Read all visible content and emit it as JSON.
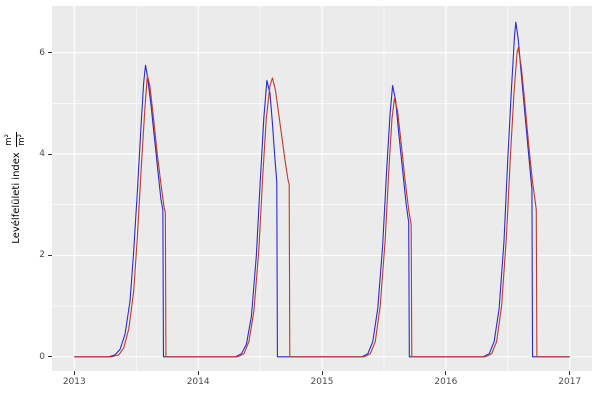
{
  "figure": {
    "background": "#ffffff",
    "panel_background": "#ebebeb",
    "gridline_color": "#ffffff",
    "tick_label_color": "#4d4d4d",
    "axis_label_color": "#000000"
  },
  "y_axis": {
    "label_text": "Levélfelületi index",
    "unit_numerator": "m²",
    "unit_denominator": "m²",
    "ticks": [
      "0",
      "2",
      "4",
      "6"
    ],
    "tick_values": [
      0,
      2,
      4,
      6
    ]
  },
  "x_axis": {
    "ticks": [
      "2013",
      "2014",
      "2015",
      "2016",
      "2017"
    ],
    "tick_values": [
      2013,
      2014,
      2015,
      2016,
      2017
    ]
  },
  "chart_data": {
    "type": "line",
    "title": "",
    "xlabel": "",
    "ylabel": "Levélfelületi index (m²/m²)",
    "xlim": [
      2012.82,
      2017.18
    ],
    "ylim": [
      -0.28,
      6.92
    ],
    "grid": true,
    "legend": "none",
    "x_major_gridlines": [
      2013,
      2014,
      2015,
      2016,
      2017
    ],
    "x_minor_gridlines": [
      2013.5,
      2014.5,
      2015.5,
      2016.5
    ],
    "y_major_gridlines": [
      0,
      2,
      4,
      6
    ],
    "y_minor_gridlines": [
      1,
      3,
      5
    ],
    "series": [
      {
        "name": "series-blue",
        "color": "#2a2ad2",
        "points": [
          [
            2013.0,
            0
          ],
          [
            2013.28,
            0
          ],
          [
            2013.33,
            0.04
          ],
          [
            2013.37,
            0.15
          ],
          [
            2013.41,
            0.45
          ],
          [
            2013.45,
            1.1
          ],
          [
            2013.48,
            2.1
          ],
          [
            2013.51,
            3.3
          ],
          [
            2013.54,
            4.6
          ],
          [
            2013.56,
            5.4
          ],
          [
            2013.575,
            5.75
          ],
          [
            2013.59,
            5.55
          ],
          [
            2013.62,
            4.95
          ],
          [
            2013.65,
            4.25
          ],
          [
            2013.68,
            3.55
          ],
          [
            2013.7,
            3.1
          ],
          [
            2013.715,
            2.9
          ],
          [
            2013.72,
            0
          ],
          [
            2014.3,
            0
          ],
          [
            2014.35,
            0.06
          ],
          [
            2014.39,
            0.25
          ],
          [
            2014.43,
            0.8
          ],
          [
            2014.47,
            2.0
          ],
          [
            2014.5,
            3.4
          ],
          [
            2014.53,
            4.7
          ],
          [
            2014.555,
            5.45
          ],
          [
            2014.58,
            5.2
          ],
          [
            2014.6,
            4.6
          ],
          [
            2014.62,
            3.9
          ],
          [
            2014.635,
            3.45
          ],
          [
            2014.64,
            0
          ],
          [
            2015.32,
            0
          ],
          [
            2015.37,
            0.06
          ],
          [
            2015.41,
            0.3
          ],
          [
            2015.45,
            0.95
          ],
          [
            2015.49,
            2.2
          ],
          [
            2015.52,
            3.6
          ],
          [
            2015.55,
            4.8
          ],
          [
            2015.57,
            5.35
          ],
          [
            2015.595,
            5.05
          ],
          [
            2015.62,
            4.4
          ],
          [
            2015.65,
            3.7
          ],
          [
            2015.68,
            3.0
          ],
          [
            2015.7,
            2.65
          ],
          [
            2015.705,
            0
          ],
          [
            2016.3,
            0
          ],
          [
            2016.35,
            0.06
          ],
          [
            2016.39,
            0.3
          ],
          [
            2016.43,
            0.95
          ],
          [
            2016.47,
            2.3
          ],
          [
            2016.5,
            3.9
          ],
          [
            2016.53,
            5.3
          ],
          [
            2016.555,
            6.35
          ],
          [
            2016.565,
            6.6
          ],
          [
            2016.585,
            6.25
          ],
          [
            2016.61,
            5.55
          ],
          [
            2016.64,
            4.75
          ],
          [
            2016.67,
            3.95
          ],
          [
            2016.695,
            3.3
          ],
          [
            2016.7,
            0
          ],
          [
            2017.0,
            0
          ]
        ]
      },
      {
        "name": "series-red",
        "color": "#c0392b",
        "points": [
          [
            2013.0,
            0
          ],
          [
            2013.3,
            0
          ],
          [
            2013.36,
            0.04
          ],
          [
            2013.4,
            0.18
          ],
          [
            2013.44,
            0.55
          ],
          [
            2013.48,
            1.3
          ],
          [
            2013.51,
            2.4
          ],
          [
            2013.54,
            3.7
          ],
          [
            2013.57,
            4.9
          ],
          [
            2013.59,
            5.55
          ],
          [
            2013.61,
            5.35
          ],
          [
            2013.64,
            4.7
          ],
          [
            2013.67,
            4.0
          ],
          [
            2013.7,
            3.4
          ],
          [
            2013.725,
            2.95
          ],
          [
            2013.735,
            2.85
          ],
          [
            2013.74,
            0
          ],
          [
            2014.32,
            0
          ],
          [
            2014.37,
            0.06
          ],
          [
            2014.41,
            0.3
          ],
          [
            2014.45,
            0.9
          ],
          [
            2014.49,
            2.1
          ],
          [
            2014.52,
            3.5
          ],
          [
            2014.55,
            4.7
          ],
          [
            2014.58,
            5.35
          ],
          [
            2014.6,
            5.5
          ],
          [
            2014.625,
            5.25
          ],
          [
            2014.65,
            4.8
          ],
          [
            2014.675,
            4.35
          ],
          [
            2014.7,
            3.9
          ],
          [
            2014.725,
            3.5
          ],
          [
            2014.735,
            3.4
          ],
          [
            2014.74,
            0
          ],
          [
            2015.34,
            0
          ],
          [
            2015.39,
            0.06
          ],
          [
            2015.43,
            0.3
          ],
          [
            2015.47,
            1.0
          ],
          [
            2015.51,
            2.3
          ],
          [
            2015.54,
            3.7
          ],
          [
            2015.565,
            4.7
          ],
          [
            2015.585,
            5.1
          ],
          [
            2015.61,
            4.85
          ],
          [
            2015.64,
            4.2
          ],
          [
            2015.67,
            3.5
          ],
          [
            2015.7,
            2.9
          ],
          [
            2015.72,
            2.6
          ],
          [
            2015.725,
            0
          ],
          [
            2016.32,
            0
          ],
          [
            2016.37,
            0.06
          ],
          [
            2016.41,
            0.3
          ],
          [
            2016.45,
            1.0
          ],
          [
            2016.49,
            2.4
          ],
          [
            2016.52,
            3.9
          ],
          [
            2016.55,
            5.2
          ],
          [
            2016.575,
            6.0
          ],
          [
            2016.585,
            6.1
          ],
          [
            2016.61,
            5.7
          ],
          [
            2016.64,
            4.95
          ],
          [
            2016.67,
            4.15
          ],
          [
            2016.7,
            3.45
          ],
          [
            2016.725,
            3.0
          ],
          [
            2016.73,
            2.9
          ],
          [
            2016.735,
            0
          ],
          [
            2017.0,
            0
          ]
        ]
      }
    ]
  }
}
